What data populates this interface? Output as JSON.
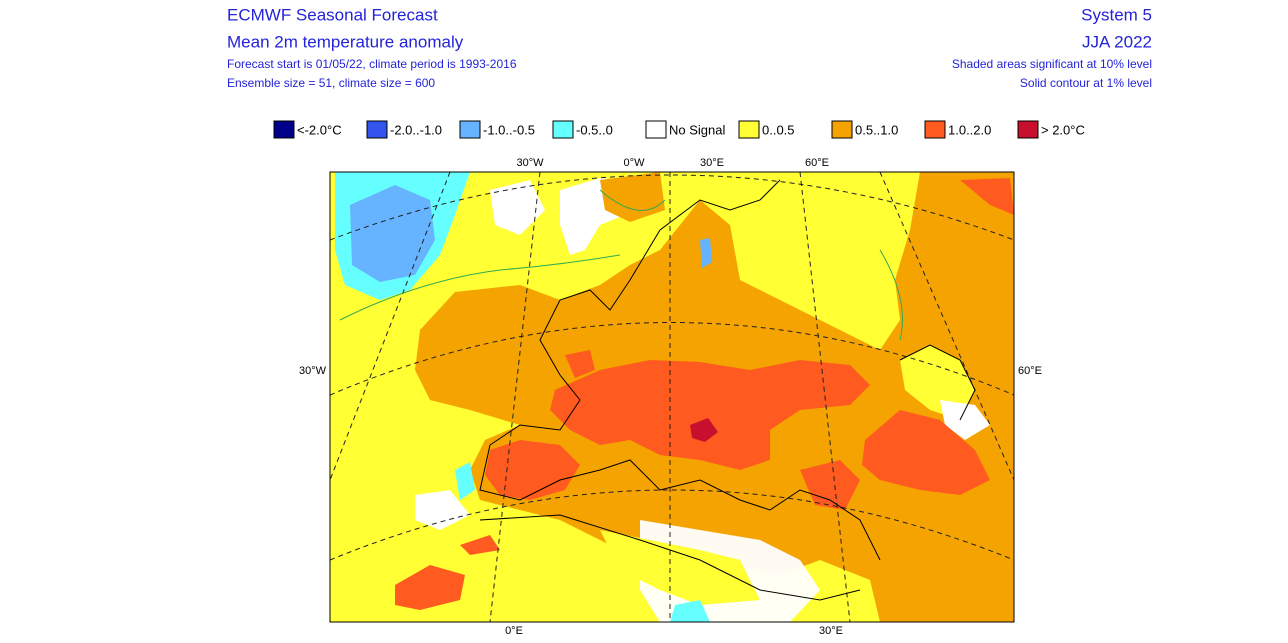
{
  "header": {
    "left": [
      "ECMWF Seasonal Forecast",
      "Mean 2m temperature anomaly",
      "Forecast start is 01/05/22, climate period is 1993-2016",
      "Ensemble size = 51, climate size = 600"
    ],
    "right": [
      "System 5",
      "JJA 2022",
      "Shaded areas significant at 10% level",
      "Solid contour at 1% level"
    ]
  },
  "legend": [
    {
      "label": "<-2.0°C",
      "color": "#00008b"
    },
    {
      "label": "-2.0..-1.0",
      "color": "#3355ee"
    },
    {
      "label": "-1.0..-0.5",
      "color": "#66b3ff"
    },
    {
      "label": "-0.5..0",
      "color": "#66ffff"
    },
    {
      "label": "No Signal",
      "color": "#ffffff"
    },
    {
      "label": "0..0.5",
      "color": "#ffff33"
    },
    {
      "label": "0.5..1.0",
      "color": "#f5a300"
    },
    {
      "label": "1.0..2.0",
      "color": "#ff5a1f"
    },
    {
      "label": "> 2.0°C",
      "color": "#c8102e"
    }
  ],
  "map": {
    "top_labels": [
      "30°W",
      "0°W",
      "30°E",
      "60°E"
    ],
    "left_label": "30°W",
    "right_label": "60°E",
    "bottom_labels": [
      "0°E",
      "30°E"
    ]
  }
}
